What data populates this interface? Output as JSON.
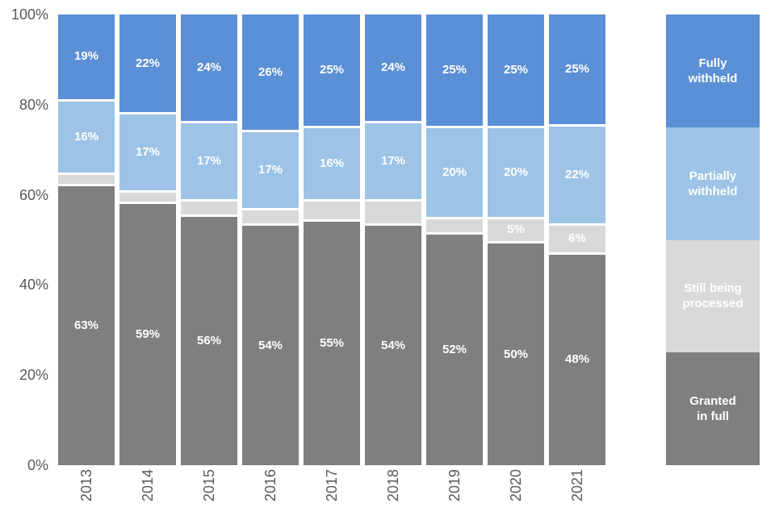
{
  "chart_data": {
    "type": "bar",
    "stacked": true,
    "percent_stacked": true,
    "grid": false,
    "legend_position": "right",
    "categories": [
      "2013",
      "2014",
      "2015",
      "2016",
      "2017",
      "2018",
      "2019",
      "2020",
      "2021"
    ],
    "series": [
      {
        "name": "Fully withheld",
        "legend_label": "Fully\nwithheld",
        "color": "#5B8FD6",
        "values": [
          19,
          22,
          24,
          26,
          25,
          24,
          25,
          25,
          25
        ],
        "labels": [
          "19%",
          "22%",
          "24%",
          "26%",
          "25%",
          "24%",
          "25%",
          "25%",
          "25%"
        ]
      },
      {
        "name": "Partially withheld",
        "legend_label": "Partially\nwithheld",
        "color": "#9DC3E6",
        "values": [
          16,
          17,
          17,
          17,
          16,
          17,
          20,
          20,
          22
        ],
        "labels": [
          "16%",
          "17%",
          "17%",
          "17%",
          "16%",
          "17%",
          "20%",
          "20%",
          "22%"
        ]
      },
      {
        "name": "Still being processed",
        "legend_label": "Still being\nprocessed",
        "color": "#D9D9D9",
        "values": [
          2,
          2,
          3,
          3,
          4,
          5,
          3,
          5,
          6
        ],
        "labels": [
          "",
          "",
          "",
          "",
          "",
          "",
          "",
          "5%",
          "6%"
        ]
      },
      {
        "name": "Granted in full",
        "legend_label": "Granted\nin full",
        "color": "#7F7F7F",
        "values": [
          63,
          59,
          56,
          54,
          55,
          54,
          52,
          50,
          48
        ],
        "labels": [
          "63%",
          "59%",
          "56%",
          "54%",
          "55%",
          "54%",
          "52%",
          "50%",
          "48%"
        ]
      }
    ],
    "y_axis": {
      "min": 0,
      "max": 100,
      "ticks": [
        {
          "value": 100,
          "label": "100%"
        },
        {
          "value": 80,
          "label": "80%"
        },
        {
          "value": 60,
          "label": "60%"
        },
        {
          "value": 40,
          "label": "40%"
        },
        {
          "value": 20,
          "label": "20%"
        },
        {
          "value": 0,
          "label": "0%"
        }
      ],
      "label_color": "#595959"
    },
    "label_text_color": "#FFFFFF"
  }
}
